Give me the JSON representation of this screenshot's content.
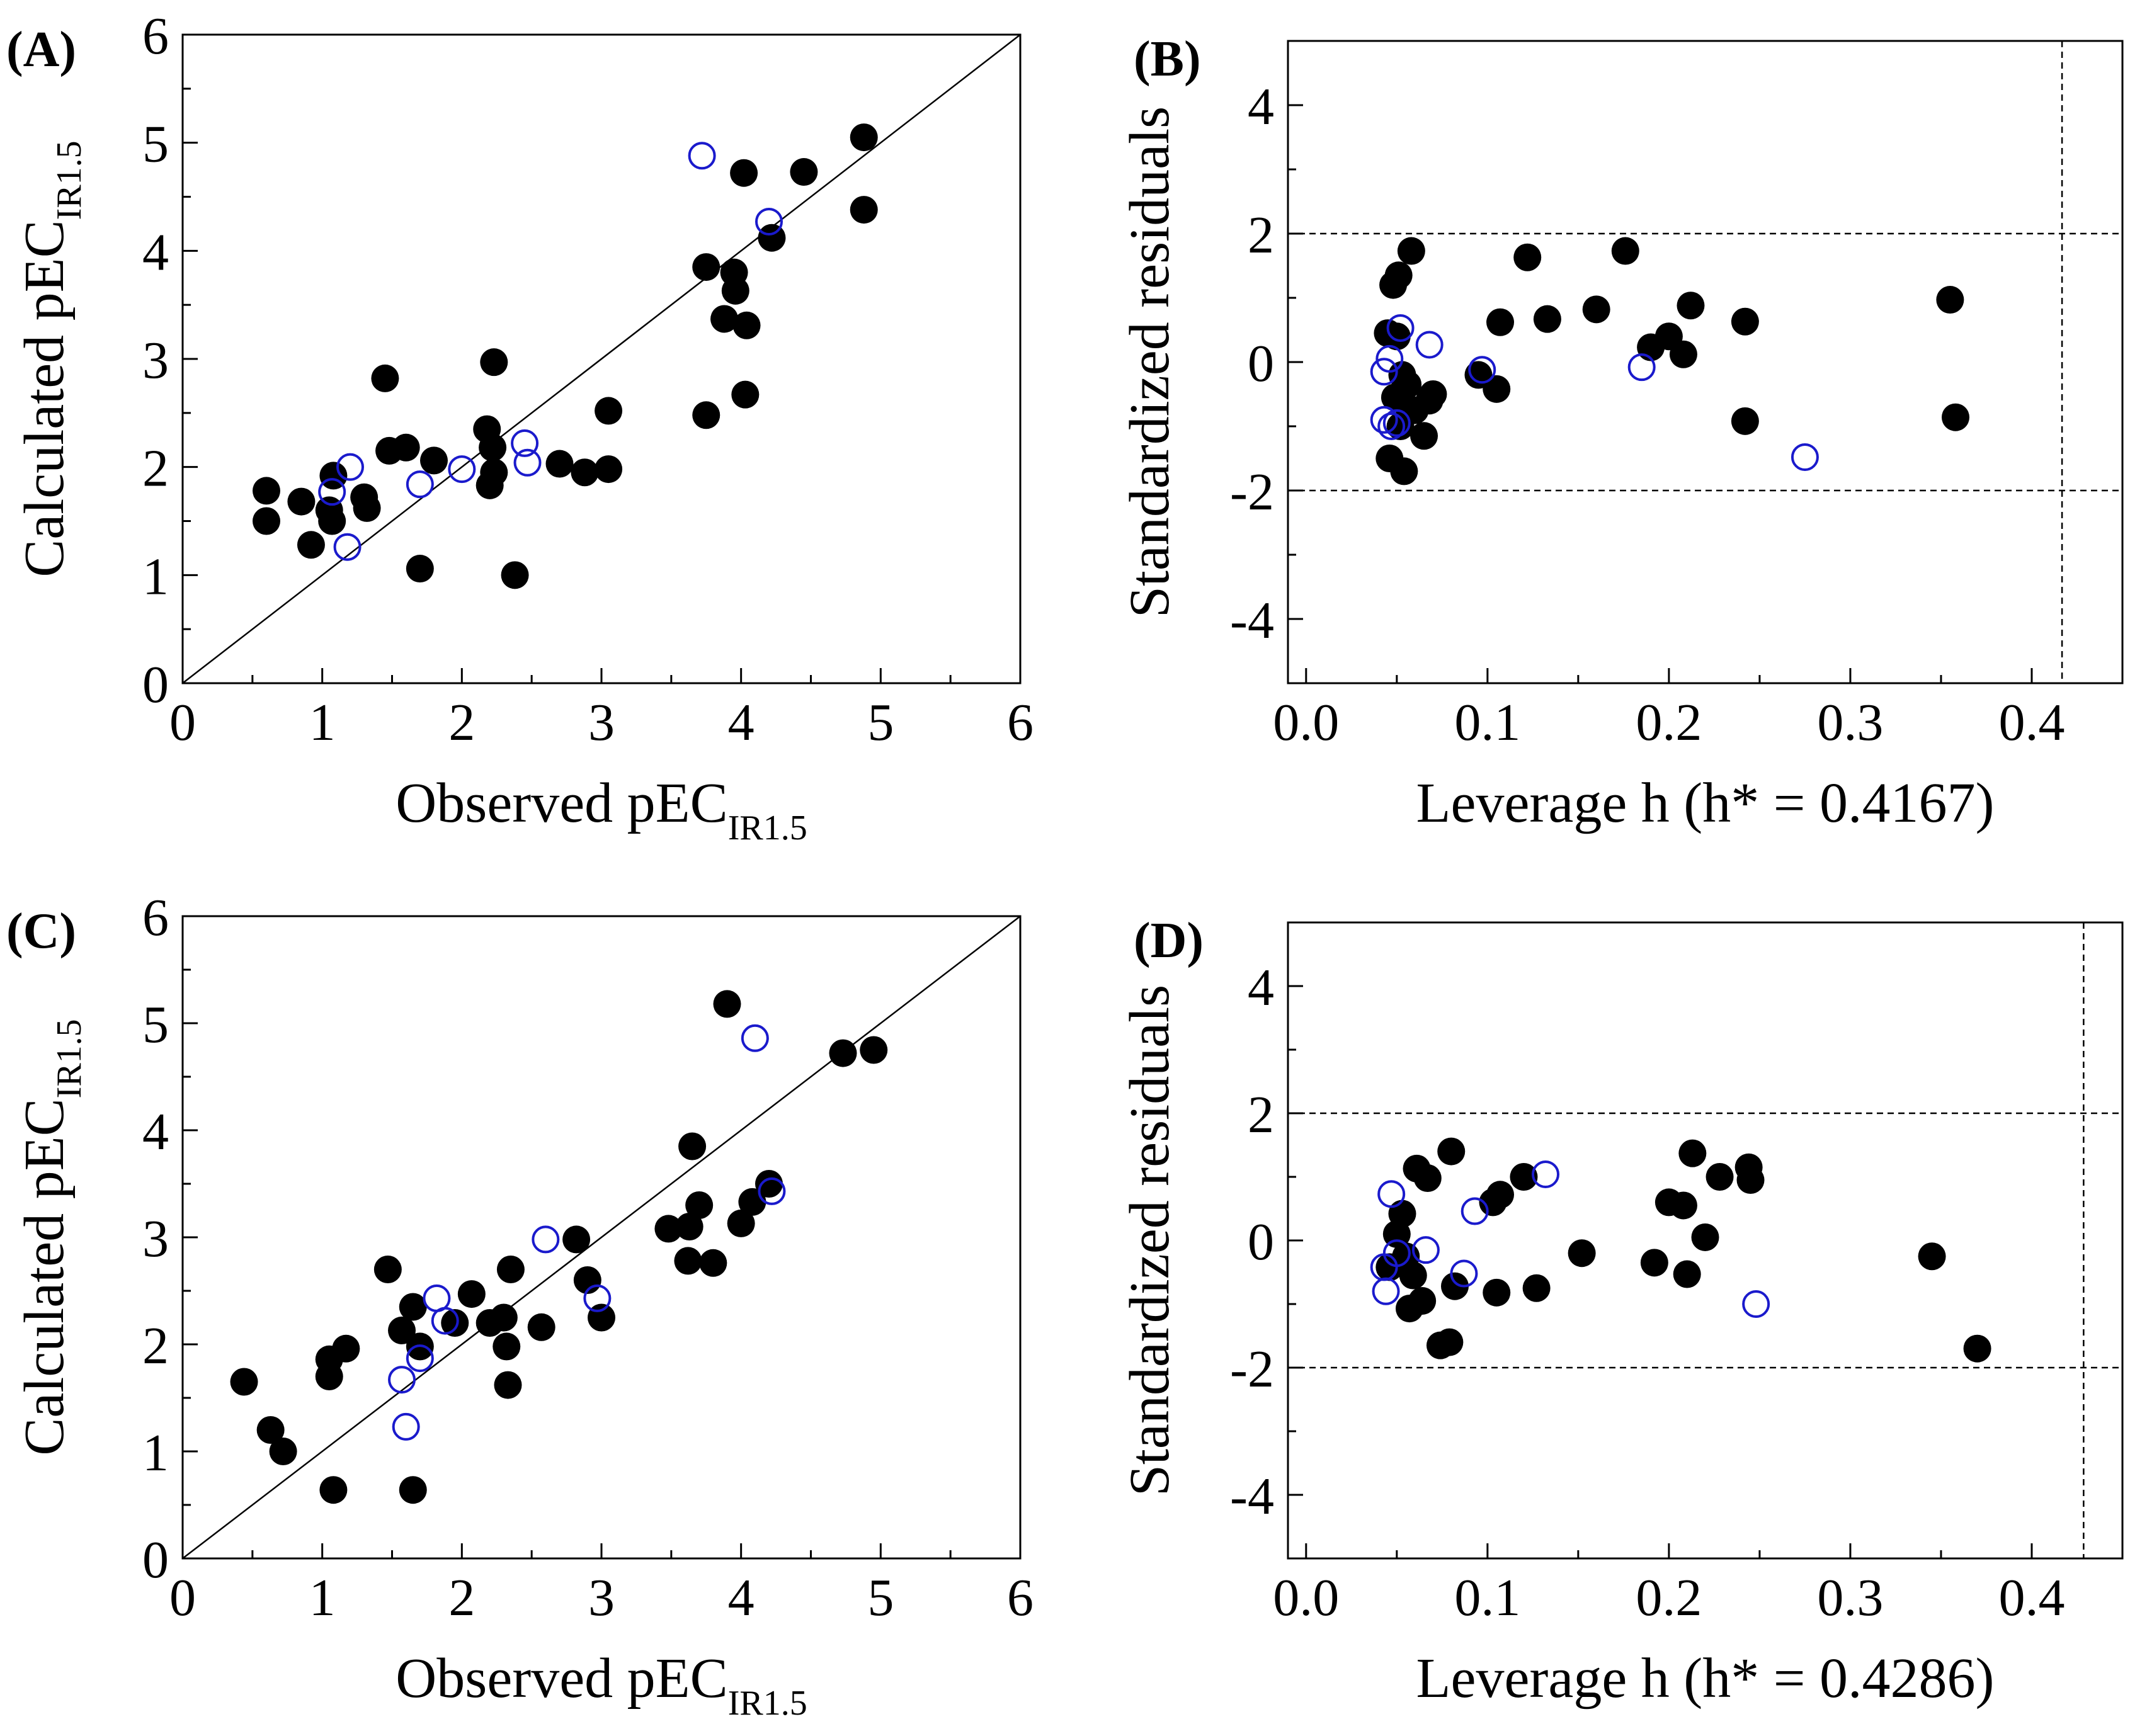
{
  "colors": {
    "filled": "#000000",
    "open": "#1a1acc",
    "axis": "#000000"
  },
  "chart_data": [
    {
      "id": "A",
      "type": "scatter",
      "panel_label": "(A)",
      "xlabel": {
        "main": "Observed pEC",
        "sub": "IR1.5"
      },
      "ylabel": {
        "main": "Calculated pEC",
        "sub": "IR1.5"
      },
      "xlim": [
        0,
        6
      ],
      "ylim": [
        0,
        6
      ],
      "xticks": [
        "0",
        "1",
        "2",
        "3",
        "4",
        "5",
        "6"
      ],
      "yticks": [
        "0",
        "1",
        "2",
        "3",
        "4",
        "5",
        "6"
      ],
      "diagonal": true,
      "series": [
        {
          "style": "filled",
          "points": [
            [
              0.6,
              1.78
            ],
            [
              0.6,
              1.5
            ],
            [
              0.85,
              1.68
            ],
            [
              0.92,
              1.28
            ],
            [
              1.05,
              1.6
            ],
            [
              1.07,
              1.5
            ],
            [
              1.08,
              1.92
            ],
            [
              1.3,
              1.72
            ],
            [
              1.32,
              1.62
            ],
            [
              1.45,
              2.82
            ],
            [
              1.48,
              2.15
            ],
            [
              1.6,
              2.18
            ],
            [
              1.7,
              1.06
            ],
            [
              1.8,
              2.06
            ],
            [
              2.18,
              2.35
            ],
            [
              2.2,
              1.83
            ],
            [
              2.22,
              2.18
            ],
            [
              2.23,
              1.95
            ],
            [
              2.23,
              2.97
            ],
            [
              2.38,
              1.0
            ],
            [
              2.7,
              2.03
            ],
            [
              2.88,
              1.95
            ],
            [
              3.05,
              1.98
            ],
            [
              3.05,
              2.52
            ],
            [
              3.75,
              3.85
            ],
            [
              3.75,
              2.48
            ],
            [
              3.88,
              3.37
            ],
            [
              3.95,
              3.8
            ],
            [
              3.96,
              3.63
            ],
            [
              4.02,
              4.72
            ],
            [
              4.04,
              3.31
            ],
            [
              4.03,
              2.67
            ],
            [
              4.22,
              4.12
            ],
            [
              4.45,
              4.73
            ],
            [
              4.88,
              5.05
            ],
            [
              4.88,
              4.38
            ]
          ]
        },
        {
          "style": "open",
          "points": [
            [
              1.07,
              1.77
            ],
            [
              1.2,
              2.0
            ],
            [
              1.18,
              1.26
            ],
            [
              1.7,
              1.84
            ],
            [
              2.0,
              1.98
            ],
            [
              2.45,
              2.22
            ],
            [
              2.47,
              2.04
            ],
            [
              3.72,
              4.88
            ],
            [
              4.2,
              4.27
            ]
          ]
        }
      ]
    },
    {
      "id": "B",
      "type": "scatter",
      "panel_label": "(B)",
      "xlabel": {
        "main": "Leverage h    (h* = 0.4167)",
        "sub": ""
      },
      "ylabel": {
        "main": "Standardized residuals",
        "sub": ""
      },
      "xlim": [
        -0.01,
        0.45
      ],
      "ylim": [
        -5,
        5
      ],
      "xticks": [
        "0.0",
        "0.1",
        "0.2",
        "0.3",
        "0.4"
      ],
      "yticks": [
        "-4",
        "-2",
        "0",
        "2",
        "4"
      ],
      "hlines": [
        2,
        -2
      ],
      "vline": 0.4167,
      "series": [
        {
          "style": "filled",
          "points": [
            [
              0.045,
              0.45
            ],
            [
              0.046,
              -1.5
            ],
            [
              0.048,
              1.2
            ],
            [
              0.049,
              -0.55
            ],
            [
              0.05,
              0.4
            ],
            [
              0.051,
              1.35
            ],
            [
              0.052,
              -1.0
            ],
            [
              0.053,
              -0.2
            ],
            [
              0.054,
              -1.7
            ],
            [
              0.056,
              -0.35
            ],
            [
              0.057,
              -0.75
            ],
            [
              0.058,
              1.73
            ],
            [
              0.06,
              -0.75
            ],
            [
              0.065,
              -1.15
            ],
            [
              0.068,
              -0.6
            ],
            [
              0.07,
              -0.5
            ],
            [
              0.095,
              -0.2
            ],
            [
              0.105,
              -0.42
            ],
            [
              0.107,
              0.62
            ],
            [
              0.122,
              1.63
            ],
            [
              0.133,
              0.67
            ],
            [
              0.16,
              0.82
            ],
            [
              0.176,
              1.73
            ],
            [
              0.19,
              0.23
            ],
            [
              0.2,
              0.4
            ],
            [
              0.208,
              0.12
            ],
            [
              0.212,
              0.88
            ],
            [
              0.242,
              0.63
            ],
            [
              0.242,
              -0.92
            ],
            [
              0.355,
              0.97
            ],
            [
              0.358,
              -0.86
            ]
          ]
        },
        {
          "style": "open",
          "points": [
            [
              0.043,
              -0.15
            ],
            [
              0.043,
              -0.9
            ],
            [
              0.046,
              0.05
            ],
            [
              0.047,
              -1.0
            ],
            [
              0.05,
              -0.95
            ],
            [
              0.052,
              0.53
            ],
            [
              0.068,
              0.27
            ],
            [
              0.097,
              -0.12
            ],
            [
              0.185,
              -0.08
            ],
            [
              0.275,
              -1.48
            ]
          ]
        }
      ]
    },
    {
      "id": "C",
      "type": "scatter",
      "panel_label": "(C)",
      "xlabel": {
        "main": "Observed pEC",
        "sub": "IR1.5"
      },
      "ylabel": {
        "main": "Calculated pEC",
        "sub": "IR1.5"
      },
      "xlim": [
        0,
        6
      ],
      "ylim": [
        0,
        6
      ],
      "xticks": [
        "0",
        "1",
        "2",
        "3",
        "4",
        "5",
        "6"
      ],
      "yticks": [
        "0",
        "1",
        "2",
        "3",
        "4",
        "5",
        "6"
      ],
      "diagonal": true,
      "series": [
        {
          "style": "filled",
          "points": [
            [
              0.44,
              1.65
            ],
            [
              0.63,
              1.2
            ],
            [
              0.72,
              1.0
            ],
            [
              1.05,
              1.86
            ],
            [
              1.05,
              1.7
            ],
            [
              1.08,
              0.64
            ],
            [
              1.17,
              1.96
            ],
            [
              1.47,
              2.7
            ],
            [
              1.57,
              2.13
            ],
            [
              1.65,
              2.35
            ],
            [
              1.65,
              0.64
            ],
            [
              1.7,
              1.98
            ],
            [
              1.95,
              2.2
            ],
            [
              2.07,
              2.47
            ],
            [
              2.2,
              2.2
            ],
            [
              2.3,
              2.25
            ],
            [
              2.32,
              1.98
            ],
            [
              2.33,
              1.62
            ],
            [
              2.35,
              2.7
            ],
            [
              2.57,
              2.16
            ],
            [
              2.82,
              2.98
            ],
            [
              2.9,
              2.6
            ],
            [
              3.0,
              2.25
            ],
            [
              3.48,
              3.08
            ],
            [
              3.62,
              2.78
            ],
            [
              3.63,
              3.1
            ],
            [
              3.65,
              3.85
            ],
            [
              3.7,
              3.3
            ],
            [
              3.8,
              2.76
            ],
            [
              3.9,
              5.18
            ],
            [
              4.0,
              3.13
            ],
            [
              4.08,
              3.33
            ],
            [
              4.2,
              3.5
            ],
            [
              4.73,
              4.72
            ],
            [
              4.95,
              4.75
            ]
          ]
        },
        {
          "style": "open",
          "points": [
            [
              1.57,
              1.67
            ],
            [
              1.6,
              1.23
            ],
            [
              1.7,
              1.87
            ],
            [
              1.82,
              2.43
            ],
            [
              1.88,
              2.22
            ],
            [
              2.6,
              2.98
            ],
            [
              2.97,
              2.43
            ],
            [
              4.1,
              4.86
            ],
            [
              4.22,
              3.43
            ]
          ]
        }
      ]
    },
    {
      "id": "D",
      "type": "scatter",
      "panel_label": "(D)",
      "xlabel": {
        "main": "Leverage h (h* = 0.4286)",
        "sub": ""
      },
      "ylabel": {
        "main": "Standardized residuals",
        "sub": ""
      },
      "xlim": [
        -0.01,
        0.45
      ],
      "ylim": [
        -5,
        5
      ],
      "xticks": [
        "0.0",
        "0.1",
        "0.2",
        "0.3",
        "0.4"
      ],
      "yticks": [
        "-4",
        "-2",
        "0",
        "2",
        "4"
      ],
      "hlines": [
        2,
        -2
      ],
      "vline": 0.4286,
      "series": [
        {
          "style": "filled",
          "points": [
            [
              0.046,
              -0.42
            ],
            [
              0.05,
              0.1
            ],
            [
              0.053,
              0.42
            ],
            [
              0.055,
              -0.25
            ],
            [
              0.057,
              -1.07
            ],
            [
              0.059,
              -0.55
            ],
            [
              0.061,
              1.13
            ],
            [
              0.064,
              -0.95
            ],
            [
              0.067,
              0.98
            ],
            [
              0.074,
              -1.65
            ],
            [
              0.079,
              -1.6
            ],
            [
              0.08,
              1.4
            ],
            [
              0.082,
              -0.72
            ],
            [
              0.103,
              0.6
            ],
            [
              0.105,
              -0.82
            ],
            [
              0.107,
              0.72
            ],
            [
              0.12,
              1.0
            ],
            [
              0.127,
              -0.75
            ],
            [
              0.152,
              -0.2
            ],
            [
              0.192,
              -0.35
            ],
            [
              0.2,
              0.6
            ],
            [
              0.208,
              0.55
            ],
            [
              0.21,
              -0.53
            ],
            [
              0.213,
              1.37
            ],
            [
              0.22,
              0.05
            ],
            [
              0.228,
              1.0
            ],
            [
              0.244,
              1.15
            ],
            [
              0.245,
              0.95
            ],
            [
              0.345,
              -0.25
            ],
            [
              0.37,
              -1.7
            ]
          ]
        },
        {
          "style": "open",
          "points": [
            [
              0.043,
              -0.42
            ],
            [
              0.044,
              -0.8
            ],
            [
              0.047,
              0.73
            ],
            [
              0.05,
              -0.2
            ],
            [
              0.066,
              -0.15
            ],
            [
              0.087,
              -0.52
            ],
            [
              0.093,
              0.46
            ],
            [
              0.132,
              1.04
            ],
            [
              0.248,
              -1.0
            ]
          ]
        }
      ]
    }
  ]
}
